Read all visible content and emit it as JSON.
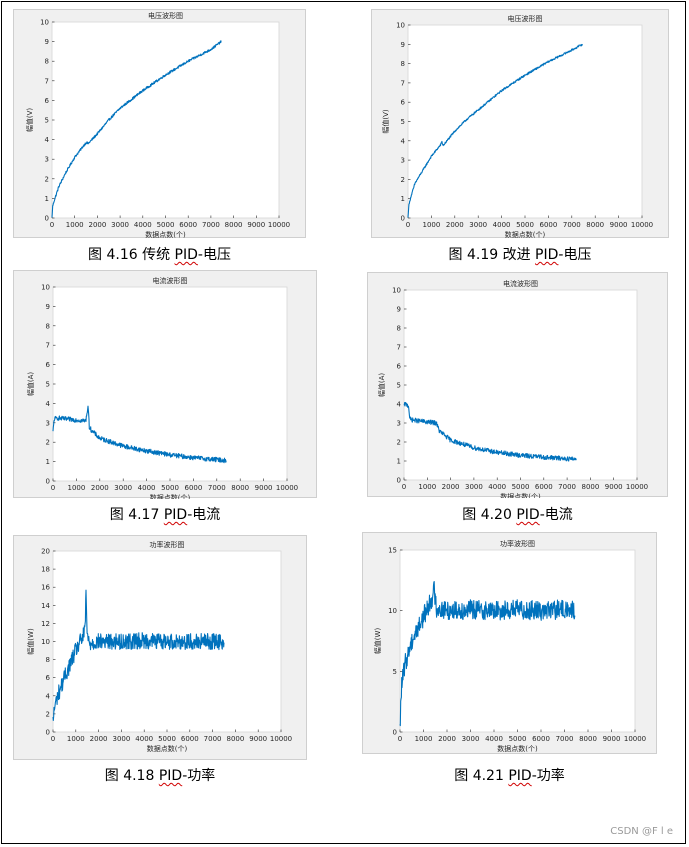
{
  "colors": {
    "series": "#0072bd",
    "panel": "#f0f0f0"
  },
  "watermark": "CSDN @F l e",
  "captions": [
    {
      "prefix": "图 4.16  传统 ",
      "pid": "PID",
      "suffix": "-电压"
    },
    {
      "prefix": "图 4.19  改进 ",
      "pid": "PID",
      "suffix": "-电压"
    },
    {
      "prefix": "图 4.17 ",
      "pid": "PID",
      "suffix": "-电流"
    },
    {
      "prefix": "图 4.20 ",
      "pid": "PID",
      "suffix": "-电流"
    },
    {
      "prefix": "图 4.18 ",
      "pid": "PID",
      "suffix": "-功率"
    },
    {
      "prefix": "图 4.21 ",
      "pid": "PID",
      "suffix": "-功率"
    }
  ],
  "chart_data": [
    {
      "type": "line",
      "title": "电压波形图",
      "xlabel": "数据点数(个)",
      "ylabel": "幅值(V)",
      "xlim": [
        0,
        10000
      ],
      "ylim": [
        0,
        10
      ],
      "xticks": [
        0,
        1000,
        2000,
        3000,
        4000,
        5000,
        6000,
        7000,
        8000,
        9000,
        10000
      ],
      "yticks": [
        0,
        1,
        2,
        3,
        4,
        5,
        6,
        7,
        8,
        9,
        10
      ],
      "noise": 0.06,
      "series": [
        {
          "x": [
            0,
            30,
            100,
            300,
            600,
            1000,
            1400,
            1500,
            1600,
            2000,
            2500,
            3000,
            4000,
            5000,
            6000,
            7000,
            7450
          ],
          "y": [
            0,
            0.6,
            0.9,
            1.6,
            2.3,
            3.1,
            3.7,
            3.85,
            3.8,
            4.3,
            5.0,
            5.6,
            6.5,
            7.3,
            8.0,
            8.6,
            9.0
          ]
        }
      ]
    },
    {
      "type": "line",
      "title": "电压波形图",
      "xlabel": "数据点数(个)",
      "ylabel": "幅值(V)",
      "xlim": [
        0,
        10000
      ],
      "ylim": [
        0,
        10
      ],
      "xticks": [
        0,
        1000,
        2000,
        3000,
        4000,
        5000,
        6000,
        7000,
        8000,
        9000,
        10000
      ],
      "yticks": [
        0,
        1,
        2,
        3,
        4,
        5,
        6,
        7,
        8,
        9,
        10
      ],
      "noise": 0.05,
      "series": [
        {
          "x": [
            0,
            30,
            100,
            300,
            600,
            1000,
            1400,
            1450,
            1500,
            2000,
            2500,
            3000,
            4000,
            5000,
            6000,
            7000,
            7450
          ],
          "y": [
            0,
            0.6,
            1.0,
            1.8,
            2.4,
            3.2,
            3.8,
            3.95,
            3.75,
            4.5,
            5.1,
            5.6,
            6.6,
            7.4,
            8.1,
            8.7,
            9.0
          ]
        }
      ]
    },
    {
      "type": "line",
      "title": "电流波形图",
      "xlabel": "数据点数(个)",
      "ylabel": "幅值(A)",
      "xlim": [
        0,
        10000
      ],
      "ylim": [
        0,
        10
      ],
      "xticks": [
        0,
        1000,
        2000,
        3000,
        4000,
        5000,
        6000,
        7000,
        8000,
        9000,
        10000
      ],
      "yticks": [
        0,
        1,
        2,
        3,
        4,
        5,
        6,
        7,
        8,
        9,
        10
      ],
      "noise": 0.12,
      "series": [
        {
          "x": [
            0,
            50,
            200,
            500,
            1000,
            1400,
            1500,
            1550,
            1650,
            2000,
            3000,
            4000,
            5000,
            6000,
            7000,
            7400
          ],
          "y": [
            2.5,
            3.2,
            3.25,
            3.2,
            3.15,
            3.1,
            3.9,
            2.8,
            2.6,
            2.2,
            1.8,
            1.55,
            1.35,
            1.2,
            1.1,
            1.05
          ]
        }
      ]
    },
    {
      "type": "line",
      "title": "电流波形图",
      "xlabel": "数据点数(个)",
      "ylabel": "幅值(A)",
      "xlim": [
        0,
        10000
      ],
      "ylim": [
        0,
        10
      ],
      "xticks": [
        0,
        1000,
        2000,
        3000,
        4000,
        5000,
        6000,
        7000,
        8000,
        9000,
        10000
      ],
      "yticks": [
        0,
        1,
        2,
        3,
        4,
        5,
        6,
        7,
        8,
        9,
        10
      ],
      "noise": 0.12,
      "series": [
        {
          "x": [
            0,
            50,
            200,
            250,
            400,
            1000,
            1400,
            1500,
            2000,
            3000,
            4000,
            5000,
            6000,
            7000,
            7400
          ],
          "y": [
            3.9,
            4.0,
            3.9,
            3.2,
            3.15,
            3.05,
            3.0,
            2.6,
            2.1,
            1.7,
            1.45,
            1.3,
            1.2,
            1.12,
            1.1
          ]
        }
      ]
    },
    {
      "type": "line",
      "title": "功率波形图",
      "xlabel": "数据点数(个)",
      "ylabel": "幅值(W)",
      "xlim": [
        0,
        10000
      ],
      "ylim": [
        0,
        20
      ],
      "xticks": [
        0,
        1000,
        2000,
        3000,
        4000,
        5000,
        6000,
        7000,
        8000,
        9000,
        10000
      ],
      "yticks": [
        0,
        2,
        4,
        6,
        8,
        10,
        12,
        14,
        16,
        18,
        20
      ],
      "noise": 0.9,
      "series": [
        {
          "x": [
            0,
            50,
            200,
            500,
            1000,
            1400,
            1450,
            1500,
            1600,
            2000,
            3000,
            4000,
            5000,
            6000,
            7000,
            7500
          ],
          "y": [
            1,
            2.5,
            4,
            6,
            9,
            11,
            15.5,
            10.5,
            9.8,
            10,
            10,
            10.1,
            10,
            10,
            10,
            10
          ]
        }
      ]
    },
    {
      "type": "line",
      "title": "功率波形图",
      "xlabel": "数据点数(个)",
      "ylabel": "幅值(W)",
      "xlim": [
        0,
        10000
      ],
      "ylim": [
        0,
        15
      ],
      "xticks": [
        0,
        1000,
        2000,
        3000,
        4000,
        5000,
        6000,
        7000,
        8000,
        9000,
        10000
      ],
      "yticks": [
        0,
        5,
        10,
        15
      ],
      "noise": 0.8,
      "series": [
        {
          "x": [
            0,
            50,
            200,
            500,
            1000,
            1400,
            1450,
            1550,
            2000,
            3000,
            4000,
            5000,
            6000,
            7000,
            7450
          ],
          "y": [
            0,
            3.5,
            5.5,
            7.5,
            9.5,
            11.2,
            11.8,
            10.2,
            10.0,
            10.1,
            10.0,
            10.1,
            10.0,
            10.1,
            10.0
          ]
        }
      ]
    }
  ]
}
